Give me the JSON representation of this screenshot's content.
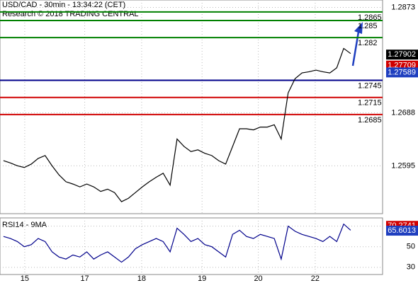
{
  "header": [
    "USD/CAD - 30min - 13:34:22 (CET)",
    "Research © 2018 TRADING CENTRAL"
  ],
  "chart_data": [
    {
      "type": "line",
      "grid": true,
      "x": [
        0,
        1,
        2,
        3,
        4,
        5,
        6,
        7,
        8,
        9,
        10,
        11,
        12,
        13,
        14,
        15,
        16,
        17,
        18,
        19,
        20,
        21,
        22,
        23,
        24,
        25,
        26,
        27,
        28,
        29,
        30,
        31,
        32,
        33,
        34,
        35,
        36,
        37,
        38,
        39,
        40,
        41,
        42,
        43,
        44,
        45,
        46,
        47,
        48,
        49,
        50
      ],
      "xlim": [
        -0.5,
        54.6
      ],
      "xticks": [
        {
          "value": 3.06,
          "label": "15"
        },
        {
          "value": 11.7,
          "label": "17"
        },
        {
          "value": 19.9,
          "label": "18"
        },
        {
          "value": 28.6,
          "label": "19"
        },
        {
          "value": 36.7,
          "label": "20"
        },
        {
          "value": 44.9,
          "label": "22"
        }
      ],
      "ylim": [
        1.2511,
        1.2886
      ],
      "yticks": [
        1.2873,
        1.2688,
        1.2595
      ],
      "series": [
        {
          "color": "#000000",
          "values": [
            1.2604,
            1.26,
            1.2595,
            1.2592,
            1.2598,
            1.2608,
            1.2613,
            1.2595,
            1.2579,
            1.2567,
            1.2563,
            1.2558,
            1.2563,
            1.2558,
            1.255,
            1.2554,
            1.2548,
            1.2532,
            1.2538,
            1.2548,
            1.2558,
            1.2567,
            1.2575,
            1.2582,
            1.2561,
            1.2642,
            1.2629,
            1.262,
            1.2623,
            1.2617,
            1.2613,
            1.2604,
            1.2598,
            1.2629,
            1.266,
            1.266,
            1.2658,
            1.2663,
            1.2663,
            1.2667,
            1.2642,
            1.2723,
            1.2748,
            1.2758,
            1.276,
            1.2763,
            1.276,
            1.2758,
            1.2767,
            1.2801,
            1.2792
          ]
        }
      ],
      "levels": [
        {
          "value": 1.2865,
          "color": "#008000"
        },
        {
          "value": 1.285,
          "color": "#008000"
        },
        {
          "value": 1.282,
          "color": "#008000"
        },
        {
          "value": 1.2745,
          "color": "#00008b"
        },
        {
          "value": 1.2715,
          "color": "#d00000"
        },
        {
          "value": 1.2685,
          "color": "#d00000"
        }
      ],
      "last_values": [
        {
          "value": 1.27902,
          "color": "#000000"
        },
        {
          "value": 1.27709,
          "color": "#d00000"
        },
        {
          "value": 1.27589,
          "color": "#1f3fbf"
        }
      ]
    },
    {
      "type": "line",
      "grid": true,
      "title": "RSI14 - 9MA",
      "ylim": [
        23,
        78
      ],
      "yticks": [
        70,
        50,
        30
      ],
      "series": [
        {
          "color": "#00008b",
          "values": [
            60,
            58,
            55,
            50,
            52,
            58,
            55,
            45,
            40,
            38,
            42,
            40,
            45,
            38,
            42,
            45,
            40,
            35,
            40,
            48,
            52,
            55,
            58,
            55,
            45,
            68,
            62,
            55,
            58,
            52,
            50,
            45,
            40,
            62,
            66,
            60,
            58,
            62,
            60,
            58,
            38,
            70,
            65,
            62,
            60,
            58,
            55,
            60,
            55,
            72,
            66
          ]
        }
      ],
      "last_values": [
        {
          "value": 70.2741,
          "color": "#d00000"
        },
        {
          "value": 65.6013,
          "color": "#1f3fbf"
        }
      ]
    }
  ]
}
